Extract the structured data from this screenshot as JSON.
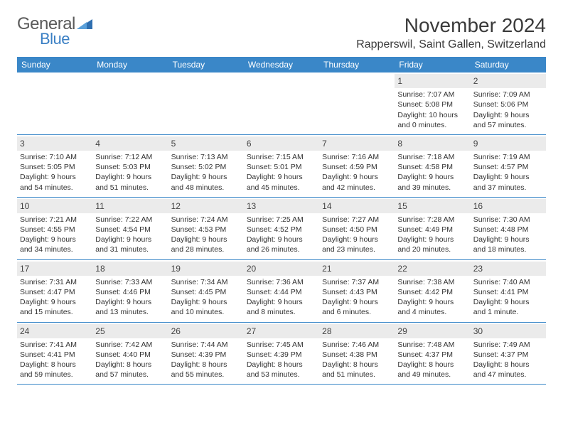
{
  "brand": {
    "name1": "General",
    "name2": "Blue",
    "triangle_color": "#2f6fb0"
  },
  "title": "November 2024",
  "location": "Rapperswil, Saint Gallen, Switzerland",
  "header_bg": "#3a87c8",
  "day_names": [
    "Sunday",
    "Monday",
    "Tuesday",
    "Wednesday",
    "Thursday",
    "Friday",
    "Saturday"
  ],
  "weeks": [
    [
      {
        "date": "",
        "sunrise": "",
        "sunset": "",
        "daylight": ""
      },
      {
        "date": "",
        "sunrise": "",
        "sunset": "",
        "daylight": ""
      },
      {
        "date": "",
        "sunrise": "",
        "sunset": "",
        "daylight": ""
      },
      {
        "date": "",
        "sunrise": "",
        "sunset": "",
        "daylight": ""
      },
      {
        "date": "",
        "sunrise": "",
        "sunset": "",
        "daylight": ""
      },
      {
        "date": "1",
        "sunrise": "Sunrise: 7:07 AM",
        "sunset": "Sunset: 5:08 PM",
        "daylight": "Daylight: 10 hours and 0 minutes."
      },
      {
        "date": "2",
        "sunrise": "Sunrise: 7:09 AM",
        "sunset": "Sunset: 5:06 PM",
        "daylight": "Daylight: 9 hours and 57 minutes."
      }
    ],
    [
      {
        "date": "3",
        "sunrise": "Sunrise: 7:10 AM",
        "sunset": "Sunset: 5:05 PM",
        "daylight": "Daylight: 9 hours and 54 minutes."
      },
      {
        "date": "4",
        "sunrise": "Sunrise: 7:12 AM",
        "sunset": "Sunset: 5:03 PM",
        "daylight": "Daylight: 9 hours and 51 minutes."
      },
      {
        "date": "5",
        "sunrise": "Sunrise: 7:13 AM",
        "sunset": "Sunset: 5:02 PM",
        "daylight": "Daylight: 9 hours and 48 minutes."
      },
      {
        "date": "6",
        "sunrise": "Sunrise: 7:15 AM",
        "sunset": "Sunset: 5:01 PM",
        "daylight": "Daylight: 9 hours and 45 minutes."
      },
      {
        "date": "7",
        "sunrise": "Sunrise: 7:16 AM",
        "sunset": "Sunset: 4:59 PM",
        "daylight": "Daylight: 9 hours and 42 minutes."
      },
      {
        "date": "8",
        "sunrise": "Sunrise: 7:18 AM",
        "sunset": "Sunset: 4:58 PM",
        "daylight": "Daylight: 9 hours and 39 minutes."
      },
      {
        "date": "9",
        "sunrise": "Sunrise: 7:19 AM",
        "sunset": "Sunset: 4:57 PM",
        "daylight": "Daylight: 9 hours and 37 minutes."
      }
    ],
    [
      {
        "date": "10",
        "sunrise": "Sunrise: 7:21 AM",
        "sunset": "Sunset: 4:55 PM",
        "daylight": "Daylight: 9 hours and 34 minutes."
      },
      {
        "date": "11",
        "sunrise": "Sunrise: 7:22 AM",
        "sunset": "Sunset: 4:54 PM",
        "daylight": "Daylight: 9 hours and 31 minutes."
      },
      {
        "date": "12",
        "sunrise": "Sunrise: 7:24 AM",
        "sunset": "Sunset: 4:53 PM",
        "daylight": "Daylight: 9 hours and 28 minutes."
      },
      {
        "date": "13",
        "sunrise": "Sunrise: 7:25 AM",
        "sunset": "Sunset: 4:52 PM",
        "daylight": "Daylight: 9 hours and 26 minutes."
      },
      {
        "date": "14",
        "sunrise": "Sunrise: 7:27 AM",
        "sunset": "Sunset: 4:50 PM",
        "daylight": "Daylight: 9 hours and 23 minutes."
      },
      {
        "date": "15",
        "sunrise": "Sunrise: 7:28 AM",
        "sunset": "Sunset: 4:49 PM",
        "daylight": "Daylight: 9 hours and 20 minutes."
      },
      {
        "date": "16",
        "sunrise": "Sunrise: 7:30 AM",
        "sunset": "Sunset: 4:48 PM",
        "daylight": "Daylight: 9 hours and 18 minutes."
      }
    ],
    [
      {
        "date": "17",
        "sunrise": "Sunrise: 7:31 AM",
        "sunset": "Sunset: 4:47 PM",
        "daylight": "Daylight: 9 hours and 15 minutes."
      },
      {
        "date": "18",
        "sunrise": "Sunrise: 7:33 AM",
        "sunset": "Sunset: 4:46 PM",
        "daylight": "Daylight: 9 hours and 13 minutes."
      },
      {
        "date": "19",
        "sunrise": "Sunrise: 7:34 AM",
        "sunset": "Sunset: 4:45 PM",
        "daylight": "Daylight: 9 hours and 10 minutes."
      },
      {
        "date": "20",
        "sunrise": "Sunrise: 7:36 AM",
        "sunset": "Sunset: 4:44 PM",
        "daylight": "Daylight: 9 hours and 8 minutes."
      },
      {
        "date": "21",
        "sunrise": "Sunrise: 7:37 AM",
        "sunset": "Sunset: 4:43 PM",
        "daylight": "Daylight: 9 hours and 6 minutes."
      },
      {
        "date": "22",
        "sunrise": "Sunrise: 7:38 AM",
        "sunset": "Sunset: 4:42 PM",
        "daylight": "Daylight: 9 hours and 4 minutes."
      },
      {
        "date": "23",
        "sunrise": "Sunrise: 7:40 AM",
        "sunset": "Sunset: 4:41 PM",
        "daylight": "Daylight: 9 hours and 1 minute."
      }
    ],
    [
      {
        "date": "24",
        "sunrise": "Sunrise: 7:41 AM",
        "sunset": "Sunset: 4:41 PM",
        "daylight": "Daylight: 8 hours and 59 minutes."
      },
      {
        "date": "25",
        "sunrise": "Sunrise: 7:42 AM",
        "sunset": "Sunset: 4:40 PM",
        "daylight": "Daylight: 8 hours and 57 minutes."
      },
      {
        "date": "26",
        "sunrise": "Sunrise: 7:44 AM",
        "sunset": "Sunset: 4:39 PM",
        "daylight": "Daylight: 8 hours and 55 minutes."
      },
      {
        "date": "27",
        "sunrise": "Sunrise: 7:45 AM",
        "sunset": "Sunset: 4:39 PM",
        "daylight": "Daylight: 8 hours and 53 minutes."
      },
      {
        "date": "28",
        "sunrise": "Sunrise: 7:46 AM",
        "sunset": "Sunset: 4:38 PM",
        "daylight": "Daylight: 8 hours and 51 minutes."
      },
      {
        "date": "29",
        "sunrise": "Sunrise: 7:48 AM",
        "sunset": "Sunset: 4:37 PM",
        "daylight": "Daylight: 8 hours and 49 minutes."
      },
      {
        "date": "30",
        "sunrise": "Sunrise: 7:49 AM",
        "sunset": "Sunset: 4:37 PM",
        "daylight": "Daylight: 8 hours and 47 minutes."
      }
    ]
  ]
}
